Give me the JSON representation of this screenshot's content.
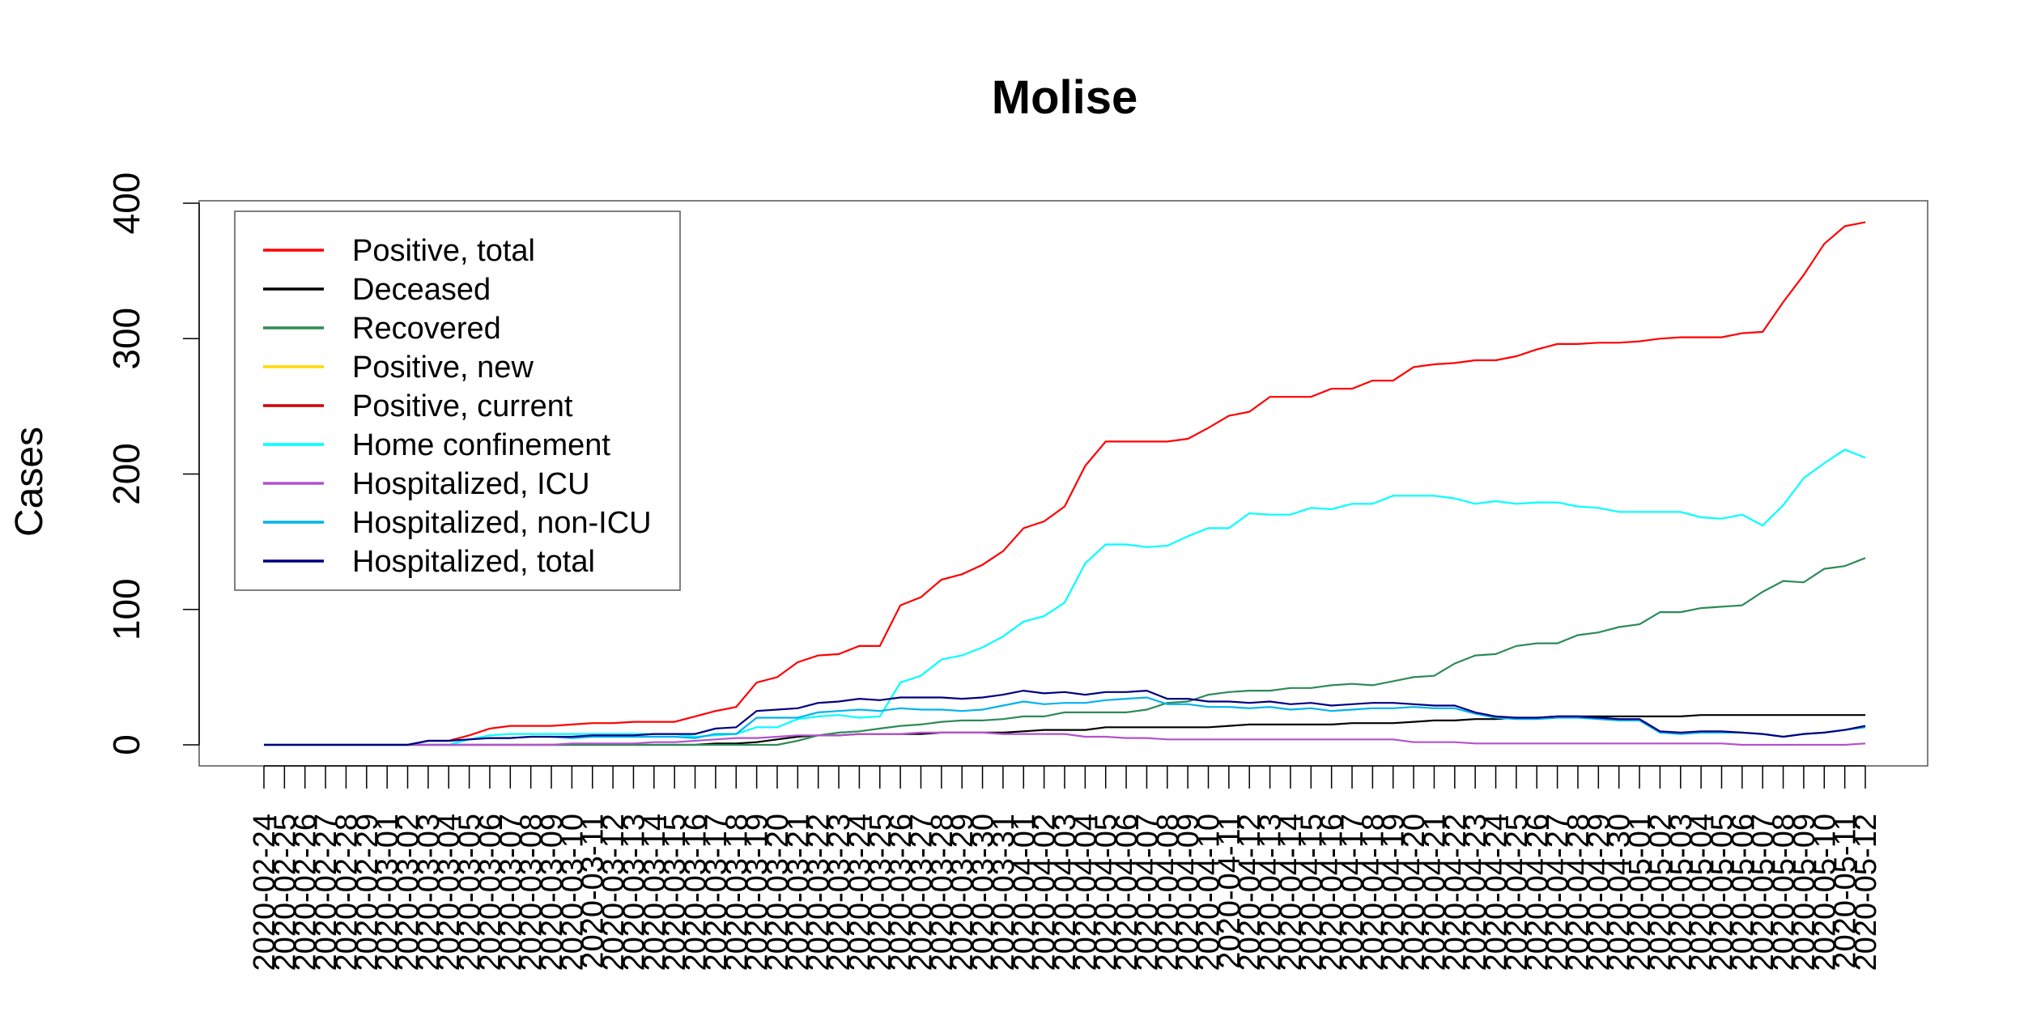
{
  "chart_data": {
    "type": "line",
    "title": "Molise",
    "y_label": "Cases",
    "x": [
      "2020-02-24",
      "2020-02-25",
      "2020-02-26",
      "2020-02-27",
      "2020-02-28",
      "2020-02-29",
      "2020-03-01",
      "2020-03-02",
      "2020-03-03",
      "2020-03-04",
      "2020-03-05",
      "2020-03-06",
      "2020-03-07",
      "2020-03-08",
      "2020-03-09",
      "2020-03-10",
      "2020-03-11",
      "2020-03-12",
      "2020-03-13",
      "2020-03-14",
      "2020-03-15",
      "2020-03-16",
      "2020-03-17",
      "2020-03-18",
      "2020-03-19",
      "2020-03-20",
      "2020-03-21",
      "2020-03-22",
      "2020-03-23",
      "2020-03-24",
      "2020-03-25",
      "2020-03-26",
      "2020-03-27",
      "2020-03-28",
      "2020-03-29",
      "2020-03-30",
      "2020-03-31",
      "2020-04-01",
      "2020-04-02",
      "2020-04-03",
      "2020-04-04",
      "2020-04-05",
      "2020-04-06",
      "2020-04-07",
      "2020-04-08",
      "2020-04-09",
      "2020-04-10",
      "2020-04-11",
      "2020-04-12",
      "2020-04-13",
      "2020-04-14",
      "2020-04-15",
      "2020-04-16",
      "2020-04-17",
      "2020-04-18",
      "2020-04-19",
      "2020-04-20",
      "2020-04-21",
      "2020-04-22",
      "2020-04-23",
      "2020-04-24",
      "2020-04-25",
      "2020-04-26",
      "2020-04-27",
      "2020-04-28",
      "2020-04-29",
      "2020-04-30",
      "2020-05-01",
      "2020-05-02",
      "2020-05-03",
      "2020-05-04",
      "2020-05-05",
      "2020-05-06",
      "2020-05-07",
      "2020-05-08",
      "2020-05-09",
      "2020-05-10",
      "2020-05-11",
      "2020-05-12"
    ],
    "ylim": [
      0,
      400
    ],
    "yticks": [
      0,
      100,
      200,
      300,
      400
    ],
    "legend": "topleft",
    "series": [
      {
        "name": "Positive, total",
        "color": "#ff0000",
        "values": [
          0,
          0,
          0,
          0,
          0,
          0,
          0,
          0,
          3,
          3,
          7,
          12,
          14,
          14,
          14,
          15,
          16,
          16,
          17,
          17,
          17,
          21,
          25,
          28,
          46,
          50,
          61,
          66,
          67,
          73,
          73,
          103,
          109,
          122,
          126,
          133,
          143,
          160,
          165,
          176,
          206,
          224,
          224,
          224,
          224,
          226,
          234,
          243,
          246,
          257,
          257,
          257,
          263,
          263,
          269,
          269,
          279,
          281,
          282,
          284,
          284,
          287,
          292,
          296,
          296,
          297,
          297,
          298,
          300,
          301,
          301,
          301,
          304,
          305,
          327,
          347,
          370,
          383,
          386
        ]
      },
      {
        "name": "Deceased",
        "color": "#000000",
        "values": [
          0,
          0,
          0,
          0,
          0,
          0,
          0,
          0,
          0,
          0,
          0,
          0,
          0,
          0,
          0,
          0,
          0,
          0,
          0,
          0,
          0,
          0,
          1,
          1,
          2,
          4,
          6,
          7,
          7,
          8,
          8,
          8,
          8,
          9,
          9,
          9,
          9,
          10,
          11,
          11,
          11,
          13,
          13,
          13,
          13,
          13,
          13,
          14,
          15,
          15,
          15,
          15,
          15,
          16,
          16,
          16,
          17,
          18,
          18,
          19,
          19,
          20,
          20,
          21,
          21,
          21,
          21,
          21,
          21,
          21,
          22,
          22,
          22,
          22,
          22,
          22,
          22,
          22,
          22
        ]
      },
      {
        "name": "Recovered",
        "color": "#2e8b57",
        "values": [
          0,
          0,
          0,
          0,
          0,
          0,
          0,
          0,
          0,
          0,
          0,
          0,
          0,
          0,
          0,
          0,
          0,
          0,
          0,
          0,
          0,
          0,
          0,
          0,
          0,
          0,
          3,
          7,
          9,
          10,
          12,
          14,
          15,
          17,
          18,
          18,
          19,
          21,
          21,
          24,
          24,
          24,
          24,
          26,
          31,
          32,
          37,
          39,
          40,
          40,
          42,
          42,
          44,
          45,
          44,
          47,
          50,
          51,
          60,
          66,
          67,
          73,
          75,
          75,
          81,
          83,
          87,
          89,
          98,
          98,
          101,
          102,
          103,
          113,
          121,
          120,
          130,
          132,
          138
        ]
      },
      {
        "name": "Positive, new",
        "color": "#ffd700",
        "values": [
          null,
          null,
          null,
          null,
          null,
          null,
          null,
          null,
          null,
          null,
          null,
          null,
          null,
          null,
          null,
          null,
          null,
          null,
          null,
          null,
          null,
          null,
          null,
          null,
          null,
          null,
          null,
          null,
          null,
          null,
          null,
          null,
          null,
          null,
          null,
          null,
          null,
          null,
          null,
          null,
          null,
          null,
          null,
          null,
          null,
          null,
          null,
          null,
          null,
          null,
          null,
          null,
          null,
          null,
          null,
          null,
          null,
          null,
          null,
          null,
          null,
          null,
          null,
          null,
          null,
          null,
          null,
          null,
          null,
          null,
          null,
          null,
          null,
          null,
          null,
          null,
          null,
          null,
          null
        ]
      },
      {
        "name": "Positive, current",
        "color": "#cd0000",
        "values": [
          null,
          null,
          null,
          null,
          null,
          null,
          null,
          null,
          null,
          null,
          null,
          null,
          null,
          null,
          null,
          null,
          null,
          null,
          null,
          null,
          null,
          null,
          null,
          null,
          null,
          null,
          null,
          null,
          null,
          null,
          null,
          null,
          null,
          null,
          null,
          null,
          null,
          null,
          null,
          null,
          null,
          null,
          null,
          null,
          null,
          null,
          null,
          null,
          null,
          null,
          null,
          null,
          null,
          null,
          null,
          null,
          null,
          null,
          null,
          null,
          null,
          null,
          null,
          null,
          null,
          null,
          null,
          null,
          null,
          null,
          null,
          null,
          null,
          null,
          null,
          null,
          null,
          null,
          null
        ]
      },
      {
        "name": "Home confinement",
        "color": "#00ffff",
        "values": [
          0,
          0,
          0,
          0,
          0,
          0,
          0,
          0,
          0,
          0,
          4,
          7,
          8,
          8,
          8,
          8,
          8,
          8,
          8,
          8,
          8,
          6,
          7,
          8,
          13,
          13,
          19,
          21,
          22,
          20,
          21,
          46,
          51,
          63,
          66,
          72,
          80,
          91,
          95,
          105,
          134,
          148,
          148,
          146,
          147,
          154,
          160,
          160,
          171,
          170,
          170,
          175,
          174,
          178,
          178,
          184,
          184,
          184,
          182,
          178,
          180,
          178,
          179,
          179,
          176,
          175,
          172,
          172,
          172,
          172,
          168,
          167,
          170,
          162,
          177,
          197,
          208,
          218,
          212
        ]
      },
      {
        "name": "Hospitalized, ICU",
        "color": "#b452cd",
        "values": [
          0,
          0,
          0,
          0,
          0,
          0,
          0,
          0,
          0,
          0,
          0,
          0,
          0,
          0,
          0,
          1,
          1,
          1,
          1,
          2,
          2,
          3,
          4,
          5,
          5,
          6,
          7,
          7,
          7,
          8,
          8,
          8,
          9,
          9,
          9,
          9,
          8,
          8,
          8,
          8,
          6,
          6,
          5,
          5,
          4,
          4,
          4,
          4,
          4,
          4,
          4,
          4,
          4,
          4,
          4,
          4,
          2,
          2,
          2,
          1,
          1,
          1,
          1,
          1,
          1,
          1,
          1,
          1,
          1,
          1,
          1,
          1,
          0,
          0,
          0,
          0,
          0,
          0,
          1
        ]
      },
      {
        "name": "Hospitalized, non-ICU",
        "color": "#00b2ee",
        "values": [
          0,
          0,
          0,
          0,
          0,
          0,
          0,
          0,
          3,
          3,
          4,
          5,
          5,
          6,
          6,
          5,
          6,
          6,
          6,
          6,
          6,
          5,
          8,
          8,
          20,
          20,
          20,
          24,
          25,
          26,
          25,
          27,
          26,
          26,
          25,
          26,
          29,
          32,
          30,
          31,
          31,
          33,
          34,
          35,
          30,
          30,
          28,
          28,
          27,
          28,
          26,
          27,
          25,
          26,
          27,
          27,
          28,
          27,
          27,
          23,
          20,
          19,
          19,
          20,
          20,
          19,
          18,
          18,
          9,
          8,
          9,
          9,
          9,
          8,
          6,
          8,
          9,
          11,
          13
        ]
      },
      {
        "name": "Hospitalized, total",
        "color": "#000080",
        "values": [
          0,
          0,
          0,
          0,
          0,
          0,
          0,
          0,
          3,
          3,
          4,
          5,
          5,
          6,
          6,
          6,
          7,
          7,
          7,
          8,
          8,
          8,
          12,
          13,
          25,
          26,
          27,
          31,
          32,
          34,
          33,
          35,
          35,
          35,
          34,
          35,
          37,
          40,
          38,
          39,
          37,
          39,
          39,
          40,
          34,
          34,
          32,
          32,
          31,
          32,
          30,
          31,
          29,
          30,
          31,
          31,
          30,
          29,
          29,
          24,
          21,
          20,
          20,
          21,
          21,
          20,
          19,
          19,
          10,
          9,
          10,
          10,
          9,
          8,
          6,
          8,
          9,
          11,
          14
        ]
      }
    ]
  }
}
